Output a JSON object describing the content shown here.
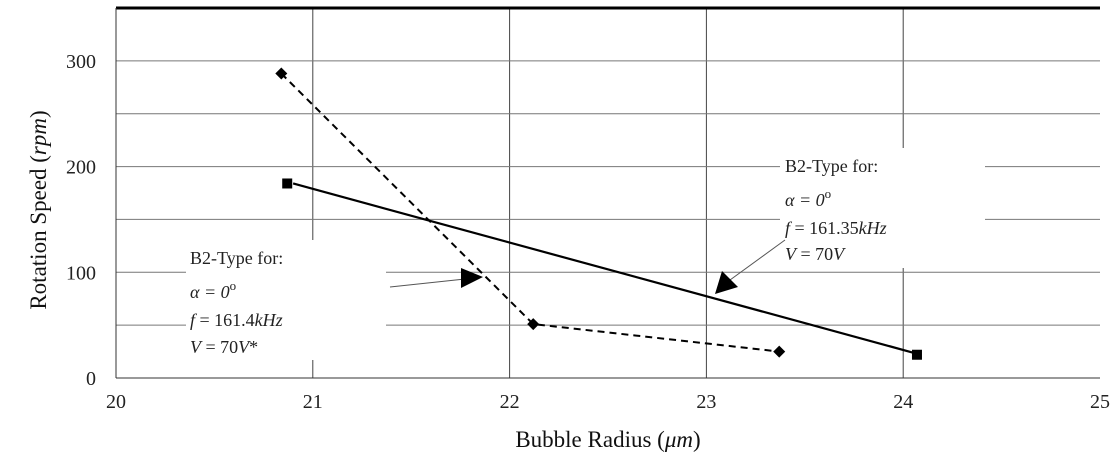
{
  "chart_data": {
    "type": "scatter",
    "xlabel": {
      "text": "Bubble Radius (",
      "unit": "μm",
      "close": ")"
    },
    "ylabel": {
      "text": "Rotation Speed (",
      "unit": "rpm",
      "close": ")"
    },
    "xlim": [
      20,
      25
    ],
    "ylim": [
      0,
      350
    ],
    "x_ticks": [
      "20",
      "21",
      "22",
      "23",
      "24",
      "25"
    ],
    "y_ticks": [
      "0",
      "100",
      "200",
      "300"
    ],
    "grid": true,
    "series": [
      {
        "marker": "diamond",
        "line": "dashed",
        "x": [
          20.84,
          22.12,
          23.37
        ],
        "y": [
          288,
          51,
          25
        ]
      },
      {
        "marker": "square",
        "line": "none",
        "x": [
          20.87,
          24.07
        ],
        "y": [
          184,
          22
        ]
      },
      {
        "marker": "none",
        "line": "solid",
        "x": [
          20.9,
          24.05
        ],
        "y": [
          184,
          24
        ]
      }
    ],
    "annotations": [
      {
        "title": "B2-Type for:",
        "alpha": "α = 0",
        "alpha_sup": "o",
        "f_pre": "f",
        "f_val": " = 161.4",
        "f_unit": "kHz",
        "v_pre": "V",
        "v_val": " = 70",
        "v_unit": "V",
        "v_suffix": "*"
      },
      {
        "title": "B2-Type for:",
        "alpha": "α = 0",
        "alpha_sup": "o",
        "f_pre": "f",
        "f_val": " = 161.35",
        "f_unit": "kHz",
        "v_pre": "V",
        "v_val": " = 70",
        "v_unit": "V",
        "v_suffix": ""
      }
    ]
  }
}
